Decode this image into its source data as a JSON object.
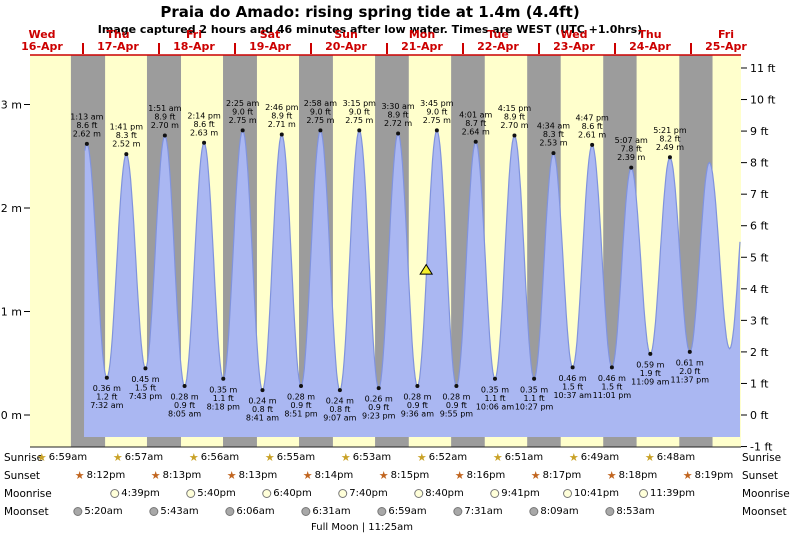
{
  "title": "Praia do Amado: rising  spring tide at 1.4m (4.4ft)",
  "subtitle": "Image captured 2 hours and 46 minutes after low water. Times are WEST (UTC +1.0hrs)",
  "colors": {
    "day_band": "#ffffcc",
    "night_band": "#9c9c9c",
    "tide_fill": "#aab7f2",
    "tide_edge": "#8093dd",
    "date_red": "#cc0000",
    "marker_fill": "#f4ee2c"
  },
  "chart_data": {
    "type": "area",
    "title": "Tide height at Praia do Amado",
    "x_range": "Wed 16-Apr through Fri 25-Apr, times WEST (UTC +1.0hrs)",
    "ylim_m": [
      -0.31,
      3.48
    ],
    "y_axis_left": {
      "unit": "m",
      "ticks": [
        {
          "label": "3 m",
          "m": 3
        },
        {
          "label": "2 m",
          "m": 2
        },
        {
          "label": "1 m",
          "m": 1
        },
        {
          "label": "0 m",
          "m": 0
        }
      ]
    },
    "y_axis_right": {
      "unit": "ft",
      "ticks": [
        {
          "label": "11 ft",
          "ft": 11
        },
        {
          "label": "10 ft",
          "ft": 10
        },
        {
          "label": "9 ft",
          "ft": 9
        },
        {
          "label": "8 ft",
          "ft": 8
        },
        {
          "label": "7 ft",
          "ft": 7
        },
        {
          "label": "6 ft",
          "ft": 6
        },
        {
          "label": "5 ft",
          "ft": 5
        },
        {
          "label": "4 ft",
          "ft": 4
        },
        {
          "label": "3 ft",
          "ft": 3
        },
        {
          "label": "2 ft",
          "ft": 2
        },
        {
          "label": "1 ft",
          "ft": 1
        },
        {
          "label": "0 ft",
          "ft": 0
        },
        {
          "label": "-1 ft",
          "ft": -1
        }
      ]
    },
    "days": [
      {
        "weekday": "Wed",
        "date": "16-Apr"
      },
      {
        "weekday": "Thu",
        "date": "17-Apr"
      },
      {
        "weekday": "Fri",
        "date": "18-Apr"
      },
      {
        "weekday": "Sat",
        "date": "19-Apr"
      },
      {
        "weekday": "Sun",
        "date": "20-Apr"
      },
      {
        "weekday": "Mon",
        "date": "21-Apr"
      },
      {
        "weekday": "Tue",
        "date": "22-Apr"
      },
      {
        "weekday": "Wed",
        "date": "23-Apr"
      },
      {
        "weekday": "Thu",
        "date": "24-Apr"
      },
      {
        "weekday": "Fri",
        "date": "25-Apr"
      }
    ],
    "sun_bands": {
      "prev_day_sunrise_h": 7.0,
      "prev_day_sunset_h": 20.18,
      "sunrise_h": [
        6.98,
        6.95,
        6.93,
        6.92,
        6.88,
        6.87,
        6.85,
        6.82,
        6.8
      ],
      "sunset_h": [
        20.2,
        20.22,
        20.22,
        20.23,
        20.25,
        20.27,
        20.28,
        20.3,
        20.32
      ]
    },
    "now_marker": {
      "height_m": 1.4,
      "T_hours": 108.37,
      "note": "rising tide at 1.4m (4.4ft)"
    },
    "tide_events": [
      {
        "T": -4.67,
        "m": 0.45,
        "type": "low",
        "annotated": false
      },
      {
        "T": 1.22,
        "m": 2.62,
        "ft": "8.6",
        "time": "1:13 am",
        "type": "high",
        "annotated": true
      },
      {
        "T": 7.53,
        "m": 0.36,
        "ft": "1.2",
        "time": "7:32 am",
        "type": "low",
        "annotated": true
      },
      {
        "T": 13.68,
        "m": 2.52,
        "ft": "8.3",
        "time": "1:41 pm",
        "type": "high",
        "annotated": true
      },
      {
        "T": 19.72,
        "m": 0.45,
        "ft": "1.5",
        "time": "7:43 pm",
        "type": "low",
        "annotated": true
      },
      {
        "T": 25.85,
        "m": 2.7,
        "ft": "8.9",
        "time": "1:51 am",
        "type": "high",
        "annotated": true
      },
      {
        "T": 32.08,
        "m": 0.28,
        "ft": "0.9",
        "time": "8:05 am",
        "type": "low",
        "annotated": true
      },
      {
        "T": 38.23,
        "m": 2.63,
        "ft": "8.6",
        "time": "2:14 pm",
        "type": "high",
        "annotated": true
      },
      {
        "T": 44.3,
        "m": 0.35,
        "ft": "1.1",
        "time": "8:18 pm",
        "type": "low",
        "annotated": true
      },
      {
        "T": 50.42,
        "m": 2.75,
        "ft": "9.0",
        "time": "2:25 am",
        "type": "high",
        "annotated": true
      },
      {
        "T": 56.68,
        "m": 0.24,
        "ft": "0.8",
        "time": "8:41 am",
        "type": "low",
        "annotated": true
      },
      {
        "T": 62.77,
        "m": 2.71,
        "ft": "8.9",
        "time": "2:46 pm",
        "type": "high",
        "annotated": true
      },
      {
        "T": 68.85,
        "m": 0.28,
        "ft": "0.9",
        "time": "8:51 pm",
        "type": "low",
        "annotated": true
      },
      {
        "T": 74.97,
        "m": 2.75,
        "ft": "9.0",
        "time": "2:58 am",
        "type": "high",
        "annotated": true
      },
      {
        "T": 81.12,
        "m": 0.24,
        "ft": "0.8",
        "time": "9:07 am",
        "type": "low",
        "annotated": true
      },
      {
        "T": 87.25,
        "m": 2.75,
        "ft": "9.0",
        "time": "3:15 pm",
        "type": "high",
        "annotated": true
      },
      {
        "T": 93.38,
        "m": 0.26,
        "ft": "0.9",
        "time": "9:23 pm",
        "type": "low",
        "annotated": true
      },
      {
        "T": 99.5,
        "m": 2.72,
        "ft": "8.9",
        "time": "3:30 am",
        "type": "high",
        "annotated": true
      },
      {
        "T": 105.6,
        "m": 0.28,
        "ft": "0.9",
        "time": "9:36 am",
        "type": "low",
        "annotated": true
      },
      {
        "T": 111.75,
        "m": 2.75,
        "ft": "9.0",
        "time": "3:45 pm",
        "type": "high",
        "annotated": true
      },
      {
        "T": 117.92,
        "m": 0.28,
        "ft": "0.9",
        "time": "9:55 pm",
        "type": "low",
        "annotated": true
      },
      {
        "T": 124.02,
        "m": 2.64,
        "ft": "8.7",
        "time": "4:01 am",
        "type": "high",
        "annotated": true
      },
      {
        "T": 130.1,
        "m": 0.35,
        "ft": "1.1",
        "time": "10:06 am",
        "type": "low",
        "annotated": true
      },
      {
        "T": 136.25,
        "m": 2.7,
        "ft": "8.9",
        "time": "4:15 pm",
        "type": "high",
        "annotated": true
      },
      {
        "T": 142.45,
        "m": 0.35,
        "ft": "1.1",
        "time": "10:27 pm",
        "type": "low",
        "annotated": true
      },
      {
        "T": 148.57,
        "m": 2.53,
        "ft": "8.3",
        "time": "4:34 am",
        "type": "high",
        "annotated": true
      },
      {
        "T": 154.62,
        "m": 0.46,
        "ft": "1.5",
        "time": "10:37 am",
        "type": "low",
        "annotated": true
      },
      {
        "T": 160.78,
        "m": 2.61,
        "ft": "8.6",
        "time": "4:47 pm",
        "type": "high",
        "annotated": true
      },
      {
        "T": 167.02,
        "m": 0.46,
        "ft": "1.5",
        "time": "11:01 pm",
        "type": "low",
        "annotated": true
      },
      {
        "T": 173.12,
        "m": 2.39,
        "ft": "7.8",
        "time": "5:07 am",
        "type": "high",
        "annotated": true
      },
      {
        "T": 179.15,
        "m": 0.59,
        "ft": "1.9",
        "time": "11:09 am",
        "type": "low",
        "annotated": true
      },
      {
        "T": 185.35,
        "m": 2.49,
        "ft": "8.2",
        "time": "5:21 pm",
        "type": "high",
        "annotated": true
      },
      {
        "T": 191.62,
        "m": 0.61,
        "ft": "2.0",
        "time": "11:37 pm",
        "type": "low",
        "annotated": true
      },
      {
        "T": 197.8,
        "m": 2.44,
        "type": "high",
        "annotated": false
      },
      {
        "T": 204.2,
        "m": 0.64,
        "type": "low",
        "annotated": false
      },
      {
        "T": 210.4,
        "m": 2.55,
        "type": "high",
        "annotated": false
      }
    ]
  },
  "almanac": {
    "rows": [
      {
        "key": "sunrise",
        "name": "Sunrise",
        "icon": "star",
        "icon_color": "#c9a227",
        "times": [
          "6:59am",
          "6:57am",
          "6:56am",
          "6:55am",
          "6:53am",
          "6:52am",
          "6:51am",
          "6:49am",
          "6:48am"
        ]
      },
      {
        "key": "sunset",
        "name": "Sunset",
        "icon": "star",
        "icon_color": "#c1651f",
        "times": [
          "8:12pm",
          "8:13pm",
          "8:13pm",
          "8:14pm",
          "8:15pm",
          "8:16pm",
          "8:17pm",
          "8:18pm",
          "8:19pm"
        ]
      },
      {
        "key": "moonrise",
        "name": "Moonrise",
        "icon": "circle",
        "icon_color": "#ffffd9",
        "times": [
          "4:39pm",
          "5:40pm",
          "6:40pm",
          "7:40pm",
          "8:40pm",
          "9:41pm",
          "10:41pm",
          "11:39pm"
        ]
      },
      {
        "key": "moonset",
        "name": "Moonset",
        "icon": "circle",
        "icon_color": "#a8a8a8",
        "times": [
          "5:20am",
          "5:43am",
          "6:06am",
          "6:31am",
          "6:59am",
          "7:31am",
          "8:09am",
          "8:53am"
        ]
      }
    ],
    "footer": "Full Moon | 11:25am"
  }
}
